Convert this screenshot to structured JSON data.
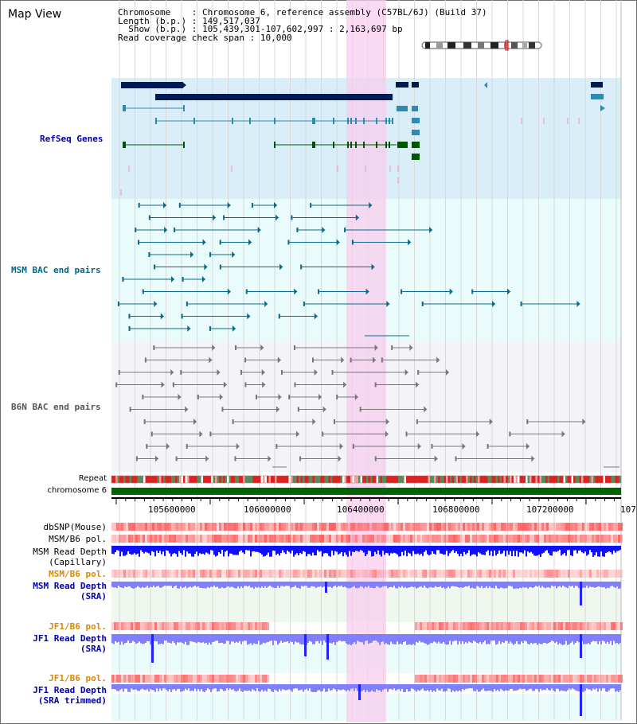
{
  "view_title": "Map View",
  "info": {
    "rows": [
      {
        "key": "Chromosome    ",
        "value": "Chromosome 6, reference assembly (C57BL/6J) (Build 37)"
      },
      {
        "key": "Length (b.p.) ",
        "value": "149,517,037"
      },
      {
        "key": "  Show (b.p.) ",
        "value": "105,439,301-107,602,997 : 2,163,697 bp"
      },
      {
        "key": "Read coverage check span ",
        "value": "10,000"
      }
    ]
  },
  "tracks": {
    "refseq_label": "RefSeq Genes",
    "msm_bac_label": "MSM BAC end pairs",
    "b6n_bac_label": "B6N BAC end pairs",
    "repeat_label": "Repeat",
    "chromosome_label": "chromosome 6",
    "dbsnp_label": "dbSNP(Mouse)",
    "msm_b6_pol_label": "MSM/B6 pol.",
    "msm_depth_cap_label": "MSM Read Depth",
    "msm_depth_cap_sub": "(Capillary)",
    "msm_b6_pol2_label": "MSM/B6 pol.",
    "msm_depth_sra_label": "MSM Read Depth",
    "msm_depth_sra_sub": "(SRA)",
    "jf1_pol_label": "JF1/B6 pol.",
    "jf1_depth_label": "JF1 Read Depth",
    "jf1_depth_sub": "(SRA)",
    "jf1_pol2_label": "JF1/B6 pol.",
    "jf1_depth_trim_label": "JF1 Read Depth",
    "jf1_depth_trim_sub": "(SRA trimmed)"
  },
  "axis": {
    "ticks": [
      "105600000",
      "106000000",
      "106400000",
      "106800000",
      "107200000",
      "107"
    ]
  },
  "colors": {
    "refseq_bg": "#d9eef8",
    "msm_bg": "#e9fbfb",
    "b6n_bg": "#f4f4f8",
    "highlight": "#f7cdee",
    "gene_dark": "#001a55",
    "gene_teal": "#2f8ab0",
    "gene_green": "#005500",
    "bac_teal": "#0a6a8a",
    "bac_gray": "#777777",
    "chromosome": "#006400",
    "depth_blue": "#1010ff",
    "depth_light": "#8080ff",
    "pol_red": "#ff6060",
    "label_blue": "#0000aa",
    "label_orange": "#dd8800",
    "label_teal": "#006688"
  }
}
